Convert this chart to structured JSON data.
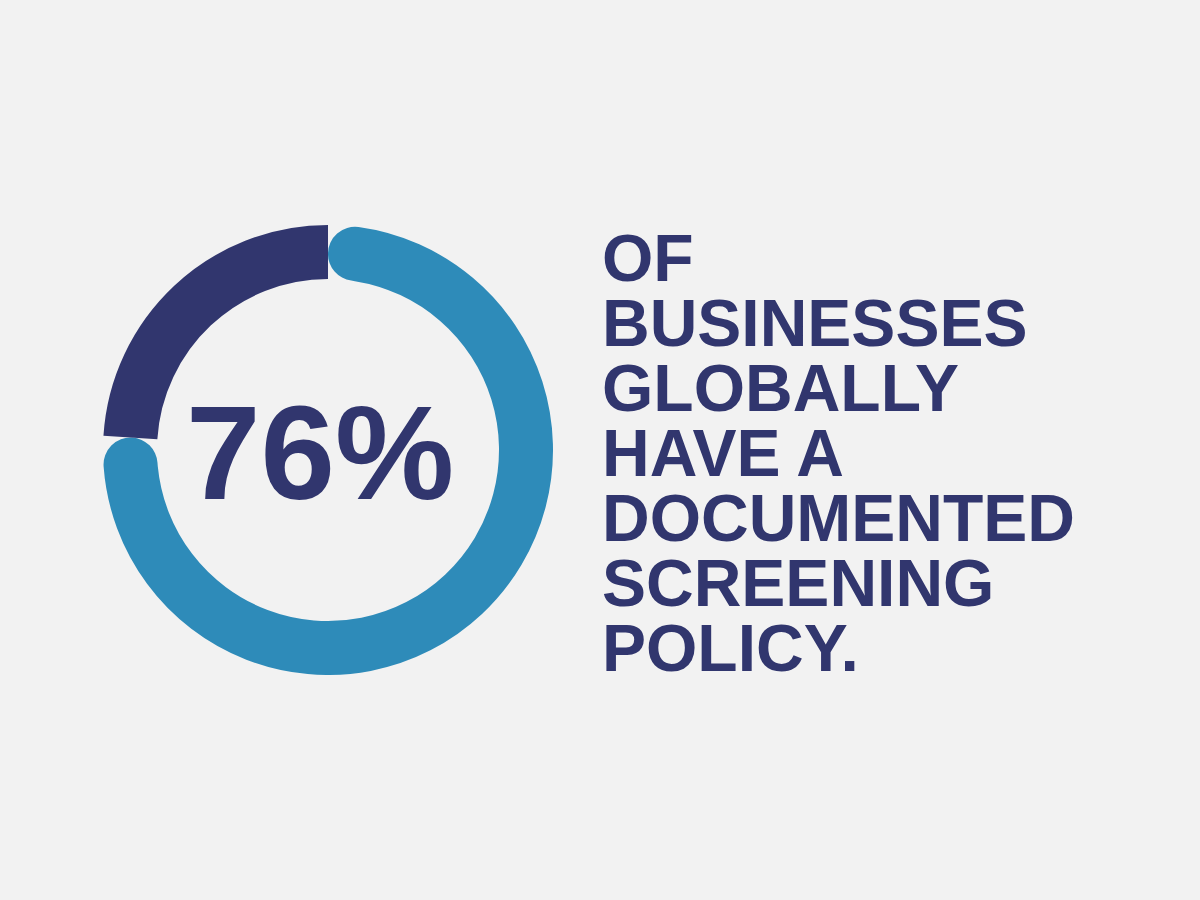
{
  "chart_data": {
    "type": "donut",
    "categories": [
      null,
      null
    ],
    "values": [
      76,
      24
    ],
    "colors": [
      "#2e8bb9",
      "#31366e"
    ],
    "annotations": [
      "76%",
      "OF BUSINESSES GLOBALLY HAVE A DOCUMENTED SCREENING POLICY."
    ]
  }
}
